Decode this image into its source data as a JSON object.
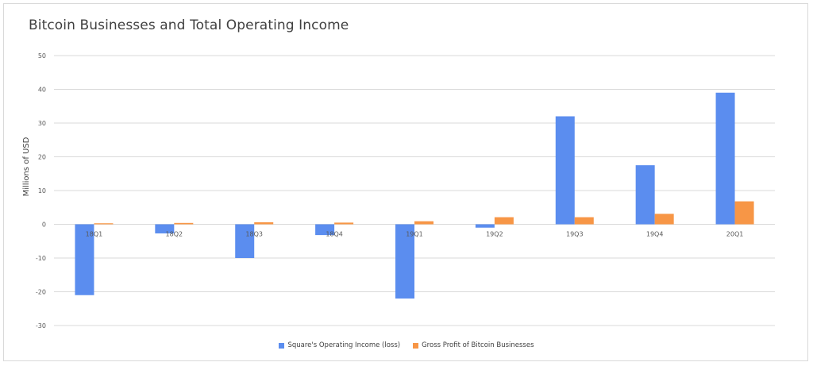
{
  "chart_data": {
    "type": "bar",
    "title": "Bitcoin Businesses and Total Operating Income",
    "xlabel": "",
    "ylabel": "Millions of USD",
    "ylim": [
      -30,
      50
    ],
    "yticks": [
      50,
      40,
      30,
      20,
      10,
      0,
      -10,
      -20,
      -30
    ],
    "categories": [
      "18Q1",
      "18Q2",
      "18Q3",
      "18Q4",
      "19Q1",
      "19Q2",
      "19Q3",
      "19Q4",
      "20Q1"
    ],
    "series": [
      {
        "name": "Square's Operating Income (loss)",
        "color": "#5b8def",
        "values": [
          -21,
          -2.7,
          -10,
          -3.2,
          -22,
          -1,
          32,
          17.5,
          39
        ]
      },
      {
        "name": "Gross Profit of Bitcoin Businesses",
        "color": "#f79646",
        "values": [
          0.3,
          0.4,
          0.6,
          0.5,
          0.9,
          2.1,
          2.1,
          3.1,
          6.8
        ]
      }
    ],
    "grid": true,
    "legend_position": "bottom",
    "colors": {
      "gridline": "#d9d9d9",
      "negative_tick": "#c00000",
      "text": "#595959"
    }
  }
}
